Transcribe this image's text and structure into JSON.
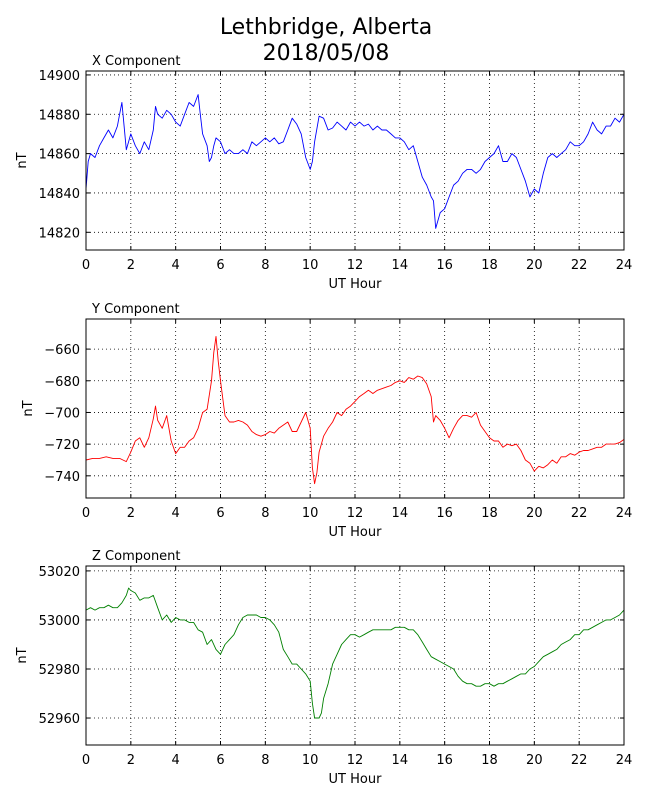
{
  "figure": {
    "title_line1": "Lethbridge, Alberta",
    "title_line2": "2018/05/08"
  },
  "chart_data": [
    {
      "type": "line",
      "panel_title": "X Component",
      "xlabel": "UT Hour",
      "ylabel": "nT",
      "xlim": [
        0,
        24
      ],
      "ylim": [
        14811,
        14902
      ],
      "xticks": [
        0,
        2,
        4,
        6,
        8,
        10,
        12,
        14,
        16,
        18,
        20,
        22,
        24
      ],
      "yticks": [
        14820,
        14840,
        14860,
        14880,
        14900
      ],
      "grid": true,
      "color": "#0000ff",
      "series": [
        {
          "x": [
            0,
            0.1,
            0.2,
            0.4,
            0.6,
            0.8,
            1.0,
            1.2,
            1.4,
            1.5,
            1.6,
            1.7,
            1.75,
            1.8,
            1.9,
            2.0,
            2.2,
            2.4,
            2.6,
            2.8,
            3.0,
            3.1,
            3.2,
            3.4,
            3.6,
            3.8,
            4.0,
            4.2,
            4.4,
            4.6,
            4.8,
            5.0,
            5.1,
            5.2,
            5.4,
            5.5,
            5.6,
            5.7,
            5.8,
            6.0,
            6.2,
            6.4,
            6.6,
            6.8,
            7.0,
            7.2,
            7.4,
            7.6,
            7.8,
            8.0,
            8.2,
            8.4,
            8.6,
            8.8,
            9.0,
            9.2,
            9.4,
            9.6,
            9.8,
            10.0,
            10.1,
            10.2,
            10.4,
            10.6,
            10.8,
            11.0,
            11.2,
            11.4,
            11.6,
            11.8,
            12.0,
            12.2,
            12.4,
            12.6,
            12.8,
            13.0,
            13.2,
            13.4,
            13.6,
            13.8,
            14.0,
            14.2,
            14.4,
            14.6,
            14.8,
            15.0,
            15.2,
            15.4,
            15.5,
            15.6,
            15.8,
            16.0,
            16.2,
            16.4,
            16.6,
            16.8,
            17.0,
            17.2,
            17.4,
            17.6,
            17.8,
            18.0,
            18.2,
            18.4,
            18.6,
            18.8,
            19.0,
            19.2,
            19.4,
            19.6,
            19.8,
            20.0,
            20.2,
            20.4,
            20.6,
            20.8,
            21.0,
            21.2,
            21.4,
            21.6,
            21.8,
            22.0,
            22.2,
            22.4,
            22.6,
            22.8,
            23.0,
            23.2,
            23.4,
            23.6,
            23.8,
            24.0
          ],
          "y": [
            14842,
            14856,
            14860,
            14858,
            14864,
            14868,
            14872,
            14868,
            14874,
            14880,
            14886,
            14874,
            14868,
            14862,
            14866,
            14870,
            14864,
            14860,
            14866,
            14862,
            14872,
            14884,
            14880,
            14878,
            14882,
            14880,
            14876,
            14874,
            14880,
            14886,
            14884,
            14890,
            14880,
            14870,
            14864,
            14856,
            14858,
            14864,
            14868,
            14866,
            14860,
            14862,
            14860,
            14860,
            14862,
            14860,
            14866,
            14864,
            14866,
            14868,
            14866,
            14868,
            14865,
            14866,
            14872,
            14878,
            14875,
            14870,
            14858,
            14852,
            14856,
            14866,
            14879,
            14878,
            14872,
            14873,
            14876,
            14874,
            14872,
            14876,
            14874,
            14876,
            14874,
            14875,
            14872,
            14874,
            14872,
            14872,
            14870,
            14868,
            14868,
            14866,
            14862,
            14864,
            14856,
            14848,
            14844,
            14838,
            14836,
            14822,
            14830,
            14832,
            14838,
            14844,
            14846,
            14850,
            14852,
            14852,
            14850,
            14852,
            14856,
            14858,
            14860,
            14864,
            14856,
            14856,
            14860,
            14858,
            14852,
            14846,
            14838,
            14842,
            14840,
            14850,
            14858,
            14860,
            14858,
            14860,
            14862,
            14866,
            14864,
            14864,
            14866,
            14870,
            14876,
            14872,
            14870,
            14874,
            14874,
            14878,
            14876,
            14880
          ]
        }
      ]
    },
    {
      "type": "line",
      "panel_title": "Y Component",
      "xlabel": "UT Hour",
      "ylabel": "nT",
      "xlim": [
        0,
        24
      ],
      "ylim": [
        -754,
        -641
      ],
      "xticks": [
        0,
        2,
        4,
        6,
        8,
        10,
        12,
        14,
        16,
        18,
        20,
        22,
        24
      ],
      "yticks": [
        -740,
        -720,
        -700,
        -680,
        -660
      ],
      "grid": true,
      "color": "#ff0000",
      "series": [
        {
          "x": [
            0,
            0.3,
            0.6,
            0.9,
            1.2,
            1.5,
            1.8,
            2.0,
            2.2,
            2.4,
            2.6,
            2.8,
            3.0,
            3.1,
            3.2,
            3.4,
            3.6,
            3.8,
            4.0,
            4.2,
            4.4,
            4.6,
            4.8,
            5.0,
            5.2,
            5.4,
            5.6,
            5.7,
            5.8,
            5.9,
            6.0,
            6.2,
            6.4,
            6.6,
            6.8,
            7.0,
            7.2,
            7.4,
            7.6,
            7.8,
            8.0,
            8.2,
            8.4,
            8.6,
            8.8,
            9.0,
            9.2,
            9.4,
            9.6,
            9.8,
            10.0,
            10.1,
            10.2,
            10.3,
            10.4,
            10.6,
            10.8,
            11.0,
            11.2,
            11.4,
            11.6,
            11.8,
            12.0,
            12.2,
            12.4,
            12.6,
            12.8,
            13.0,
            13.2,
            13.4,
            13.6,
            13.8,
            14.0,
            14.2,
            14.4,
            14.6,
            14.8,
            15.0,
            15.2,
            15.4,
            15.5,
            15.6,
            15.8,
            16.0,
            16.2,
            16.4,
            16.6,
            16.8,
            17.0,
            17.2,
            17.4,
            17.6,
            17.8,
            18.0,
            18.2,
            18.4,
            18.6,
            18.8,
            19.0,
            19.2,
            19.4,
            19.6,
            19.8,
            20.0,
            20.2,
            20.4,
            20.6,
            20.8,
            21.0,
            21.2,
            21.4,
            21.6,
            21.8,
            22.0,
            22.2,
            22.4,
            22.6,
            22.8,
            23.0,
            23.2,
            23.4,
            23.6,
            23.8,
            24.0
          ],
          "y": [
            -730,
            -729,
            -729,
            -728,
            -729,
            -729,
            -731,
            -725,
            -718,
            -716,
            -722,
            -716,
            -704,
            -696,
            -705,
            -710,
            -702,
            -718,
            -726,
            -722,
            -722,
            -718,
            -716,
            -710,
            -700,
            -698,
            -680,
            -662,
            -652,
            -668,
            -680,
            -702,
            -706,
            -706,
            -705,
            -706,
            -708,
            -712,
            -714,
            -715,
            -714,
            -712,
            -713,
            -710,
            -708,
            -706,
            -712,
            -712,
            -706,
            -700,
            -710,
            -735,
            -745,
            -738,
            -725,
            -715,
            -710,
            -706,
            -700,
            -702,
            -698,
            -696,
            -693,
            -690,
            -688,
            -686,
            -688,
            -686,
            -685,
            -684,
            -683,
            -681,
            -680,
            -681,
            -678,
            -679,
            -677,
            -678,
            -682,
            -690,
            -706,
            -702,
            -705,
            -710,
            -716,
            -710,
            -705,
            -702,
            -702,
            -703,
            -700,
            -708,
            -712,
            -716,
            -718,
            -718,
            -722,
            -720,
            -721,
            -720,
            -724,
            -730,
            -732,
            -737,
            -734,
            -735,
            -733,
            -730,
            -732,
            -728,
            -728,
            -726,
            -727,
            -725,
            -724,
            -724,
            -723,
            -722,
            -722,
            -720,
            -720,
            -720,
            -719,
            -717
          ]
        }
      ]
    },
    {
      "type": "line",
      "panel_title": "Z Component",
      "xlabel": "UT Hour",
      "ylabel": "nT",
      "xlim": [
        0,
        24
      ],
      "ylim": [
        52949,
        53022
      ],
      "xticks": [
        0,
        2,
        4,
        6,
        8,
        10,
        12,
        14,
        16,
        18,
        20,
        22,
        24
      ],
      "yticks": [
        52960,
        52980,
        53000,
        53020
      ],
      "grid": true,
      "color": "#008000",
      "series": [
        {
          "x": [
            0,
            0.2,
            0.4,
            0.6,
            0.8,
            1.0,
            1.2,
            1.4,
            1.6,
            1.8,
            1.9,
            2.0,
            2.2,
            2.4,
            2.6,
            2.8,
            3.0,
            3.2,
            3.4,
            3.6,
            3.8,
            4.0,
            4.2,
            4.4,
            4.6,
            4.8,
            5.0,
            5.2,
            5.4,
            5.6,
            5.8,
            6.0,
            6.1,
            6.2,
            6.4,
            6.6,
            6.8,
            7.0,
            7.2,
            7.4,
            7.6,
            7.8,
            8.0,
            8.2,
            8.4,
            8.6,
            8.8,
            9.0,
            9.2,
            9.4,
            9.6,
            9.8,
            10.0,
            10.1,
            10.2,
            10.3,
            10.4,
            10.5,
            10.6,
            10.8,
            11.0,
            11.2,
            11.4,
            11.6,
            11.8,
            12.0,
            12.2,
            12.4,
            12.6,
            12.8,
            13.0,
            13.2,
            13.4,
            13.6,
            13.8,
            14.0,
            14.2,
            14.4,
            14.6,
            14.8,
            15.0,
            15.2,
            15.4,
            15.6,
            15.8,
            16.0,
            16.2,
            16.4,
            16.6,
            16.8,
            17.0,
            17.2,
            17.4,
            17.6,
            17.8,
            18.0,
            18.2,
            18.4,
            18.6,
            18.8,
            19.0,
            19.2,
            19.4,
            19.6,
            19.8,
            20.0,
            20.2,
            20.4,
            20.6,
            20.8,
            21.0,
            21.2,
            21.4,
            21.6,
            21.8,
            22.0,
            22.2,
            22.4,
            22.6,
            22.8,
            23.0,
            23.2,
            23.4,
            23.6,
            23.8,
            24.0
          ],
          "y": [
            53004,
            53005,
            53004,
            53005,
            53005,
            53006,
            53005,
            53005,
            53007,
            53010,
            53013,
            53012,
            53011,
            53008,
            53009,
            53009,
            53010,
            53005,
            53000,
            53002,
            52999,
            53001,
            53000,
            53000,
            52999,
            52999,
            52996,
            52995,
            52990,
            52992,
            52988,
            52986,
            52988,
            52990,
            52992,
            52994,
            52998,
            53001,
            53002,
            53002,
            53002,
            53001,
            53001,
            53000,
            52998,
            52995,
            52988,
            52985,
            52982,
            52982,
            52980,
            52978,
            52975,
            52966,
            52960,
            52960,
            52960,
            52962,
            52968,
            52974,
            52982,
            52986,
            52990,
            52992,
            52994,
            52994,
            52993,
            52994,
            52995,
            52996,
            52996,
            52996,
            52996,
            52996,
            52997,
            52997,
            52997,
            52996,
            52996,
            52994,
            52991,
            52988,
            52985,
            52984,
            52983,
            52982,
            52981,
            52980,
            52977,
            52975,
            52974,
            52974,
            52973,
            52973,
            52974,
            52974,
            52973,
            52974,
            52974,
            52975,
            52976,
            52977,
            52978,
            52978,
            52980,
            52981,
            52983,
            52985,
            52986,
            52987,
            52988,
            52990,
            52991,
            52992,
            52994,
            52994,
            52996,
            52996,
            52997,
            52998,
            52999,
            53000,
            53000,
            53001,
            53002,
            53004
          ]
        }
      ]
    }
  ]
}
